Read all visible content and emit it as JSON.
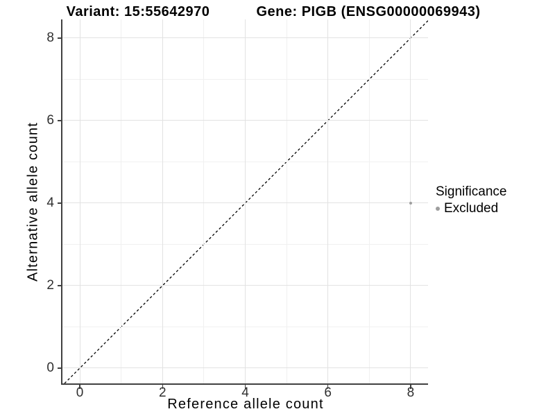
{
  "chart_data": {
    "type": "scatter",
    "titles": {
      "left": "Variant: 15:55642970",
      "right": "Gene: PIGB (ENSG00000069943)"
    },
    "xlabel": "Reference allele count",
    "ylabel": "Alternative allele count",
    "xlim": [
      -0.42,
      8.42
    ],
    "ylim": [
      -0.37,
      8.45
    ],
    "xticks": {
      "major": [
        0,
        2,
        4,
        6,
        8
      ],
      "minor": [
        1,
        3,
        5,
        7
      ],
      "labels": [
        "0",
        "2",
        "4",
        "6",
        "8"
      ]
    },
    "yticks": {
      "major": [
        0,
        2,
        4,
        6,
        8
      ],
      "minor": [
        1,
        3,
        5,
        7
      ],
      "labels": [
        "0",
        "2",
        "4",
        "6",
        "8"
      ]
    },
    "grid": {
      "major_color": "#e2e2e2",
      "minor_color": "#f0f0f0"
    },
    "axis_color": "#404040",
    "points": [
      {
        "x": 8,
        "y": 4,
        "series": "Excluded",
        "color": "#9e9e9e",
        "radius": 2.2
      }
    ],
    "identity_line": {
      "slope": 1,
      "intercept": 0,
      "style": "dashed",
      "color": "#000000"
    },
    "legend": {
      "position": "right",
      "title": "Significance",
      "entries": [
        {
          "label": "Excluded",
          "color": "#9e9e9e"
        }
      ]
    }
  }
}
